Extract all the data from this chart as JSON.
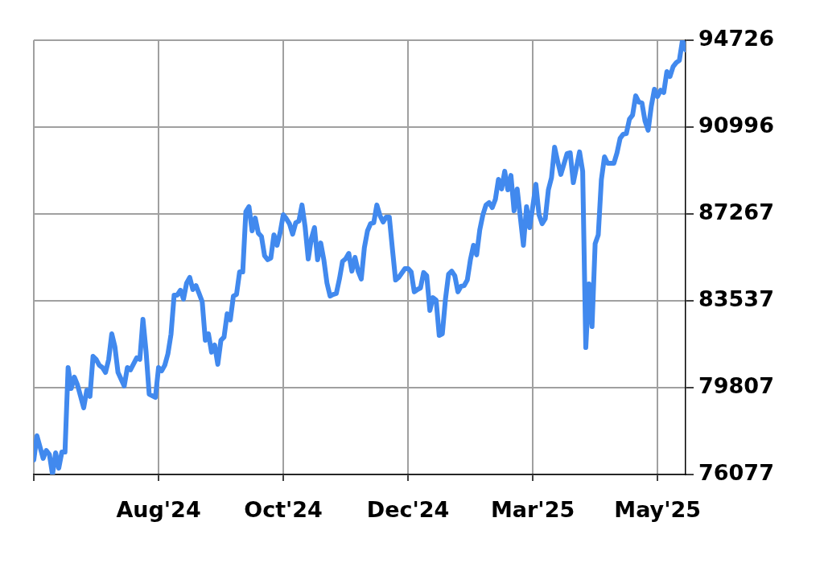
{
  "chart_data": {
    "type": "line",
    "color": "#4189ee",
    "line_style": "solid",
    "grid": true,
    "ylim": [
      76077,
      94726
    ],
    "yticks": [
      76077,
      79807,
      83537,
      87267,
      90996,
      94726
    ],
    "categories": [
      null,
      null,
      null,
      null,
      null,
      null,
      null,
      null,
      null,
      null,
      null,
      null,
      null,
      null,
      null,
      null,
      null,
      null,
      null,
      null,
      null,
      null,
      null,
      null,
      null,
      null,
      null,
      null,
      null,
      null,
      null,
      null,
      null,
      null,
      null,
      null,
      null,
      null,
      null,
      null,
      "Aug'24",
      null,
      null,
      null,
      null,
      null,
      null,
      null,
      null,
      null,
      null,
      null,
      null,
      null,
      null,
      null,
      null,
      null,
      null,
      null,
      null,
      null,
      null,
      null,
      null,
      null,
      null,
      null,
      null,
      null,
      null,
      null,
      null,
      null,
      null,
      null,
      null,
      null,
      null,
      null,
      "Oct'24",
      null,
      null,
      null,
      null,
      null,
      null,
      null,
      null,
      null,
      null,
      null,
      null,
      null,
      null,
      null,
      null,
      null,
      null,
      null,
      null,
      null,
      null,
      null,
      null,
      null,
      null,
      null,
      null,
      null,
      null,
      null,
      null,
      null,
      null,
      null,
      null,
      null,
      null,
      null,
      "Dec'24",
      null,
      null,
      null,
      null,
      null,
      null,
      null,
      null,
      null,
      null,
      null,
      null,
      null,
      null,
      null,
      null,
      null,
      null,
      null,
      null,
      null,
      null,
      null,
      null,
      null,
      null,
      null,
      null,
      null,
      null,
      null,
      null,
      null,
      null,
      null,
      null,
      null,
      null,
      null,
      "Mar'25",
      null,
      null,
      null,
      null,
      null,
      null,
      null,
      null,
      null,
      null,
      null,
      null,
      null,
      null,
      null,
      null,
      null,
      null,
      null,
      null,
      null,
      null,
      null,
      null,
      null,
      null,
      null,
      null,
      null,
      null,
      null,
      null,
      null,
      null,
      null,
      null,
      null,
      null,
      null,
      "May'25",
      null,
      null,
      null,
      null,
      null,
      null,
      null,
      null,
      null
    ],
    "values": [
      76700,
      77740,
      77260,
      76770,
      77110,
      76940,
      76080,
      77010,
      76350,
      77040,
      77040,
      80670,
      79770,
      80260,
      79930,
      79440,
      78940,
      79700,
      79430,
      81150,
      81020,
      80770,
      80670,
      80460,
      81010,
      82120,
      81570,
      80460,
      80170,
      79880,
      80670,
      80570,
      80830,
      81090,
      81020,
      82740,
      81360,
      79530,
      79460,
      79390,
      80670,
      80530,
      80770,
      81260,
      82100,
      83780,
      83780,
      83990,
      83610,
      84300,
      84540,
      84020,
      84190,
      83850,
      83500,
      81840,
      82120,
      81330,
      81640,
      80810,
      81840,
      81980,
      82980,
      82710,
      83740,
      83810,
      84780,
      84780,
      87370,
      87580,
      86540,
      87090,
      86440,
      86300,
      85470,
      85300,
      85370,
      86370,
      85920,
      86470,
      87230,
      87060,
      86840,
      86400,
      86890,
      86960,
      87650,
      86710,
      85330,
      86200,
      86680,
      85300,
      86020,
      85300,
      84300,
      83740,
      83810,
      83850,
      84470,
      85230,
      85340,
      85570,
      84810,
      85400,
      84810,
      84470,
      85820,
      86540,
      86850,
      86890,
      87650,
      87200,
      86920,
      87130,
      87130,
      85750,
      84430,
      84540,
      84730,
      84920,
      84920,
      84780,
      83920,
      84020,
      84090,
      84750,
      84610,
      83120,
      83670,
      83570,
      82050,
      82120,
      83610,
      84680,
      84810,
      84610,
      83920,
      84160,
      84190,
      84430,
      85300,
      85920,
      85510,
      86580,
      87230,
      87650,
      87750,
      87540,
      87890,
      88750,
      88340,
      89100,
      88300,
      88920,
      87400,
      88340,
      87130,
      85920,
      87580,
      86680,
      87580,
      88540,
      87230,
      86850,
      87060,
      88300,
      88820,
      90130,
      89510,
      88960,
      89410,
      89860,
      89890,
      88610,
      89270,
      89930,
      89100,
      81530,
      84260,
      82430,
      85990,
      86370,
      88750,
      89720,
      89440,
      89440,
      89440,
      89890,
      90510,
      90690,
      90720,
      91340,
      91510,
      92340,
      92070,
      92030,
      91250,
      90860,
      91890,
      92620,
      92310,
      92580,
      92480,
      93380,
      93170,
      93590,
      93760,
      93860,
      94720,
      94310
    ]
  }
}
